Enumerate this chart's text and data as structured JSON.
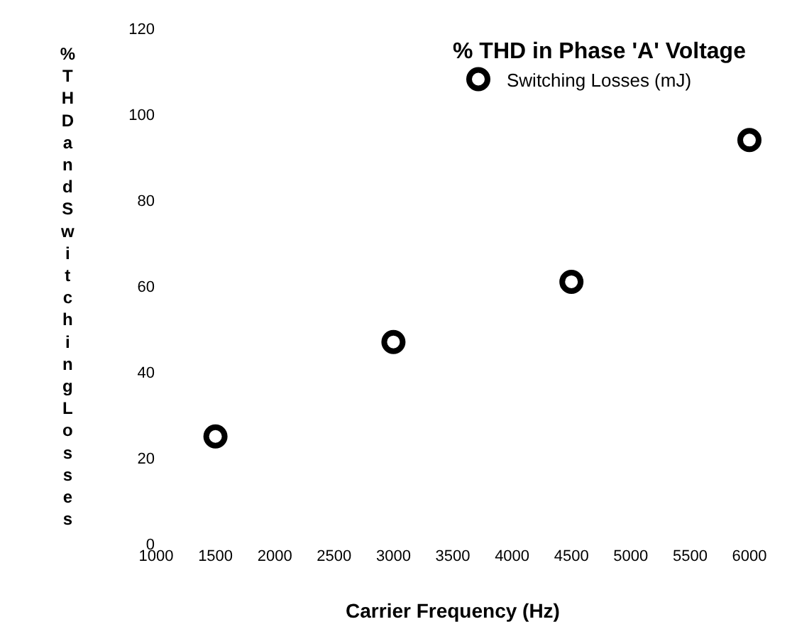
{
  "chart_data": {
    "type": "scatter",
    "xlabel": "Carrier Frequency (Hz)",
    "ylabel": "% THD and Switching Losses",
    "legend_title": "% THD in Phase 'A' Voltage",
    "x": [
      1500,
      3000,
      4500,
      6000
    ],
    "series": [
      {
        "name": "Switching Losses (mJ)",
        "color": "#000000",
        "values": [
          25,
          47,
          61,
          94
        ]
      }
    ],
    "xlim": [
      1000,
      6000
    ],
    "xticks": [
      1000,
      1500,
      2000,
      2500,
      3000,
      3500,
      4000,
      4500,
      5000,
      5500,
      6000
    ],
    "ylim": [
      0,
      120
    ],
    "yticks": [
      0,
      20,
      40,
      60,
      80,
      100,
      120
    ],
    "grid": false,
    "legend": "top right",
    "marker": "circle"
  }
}
